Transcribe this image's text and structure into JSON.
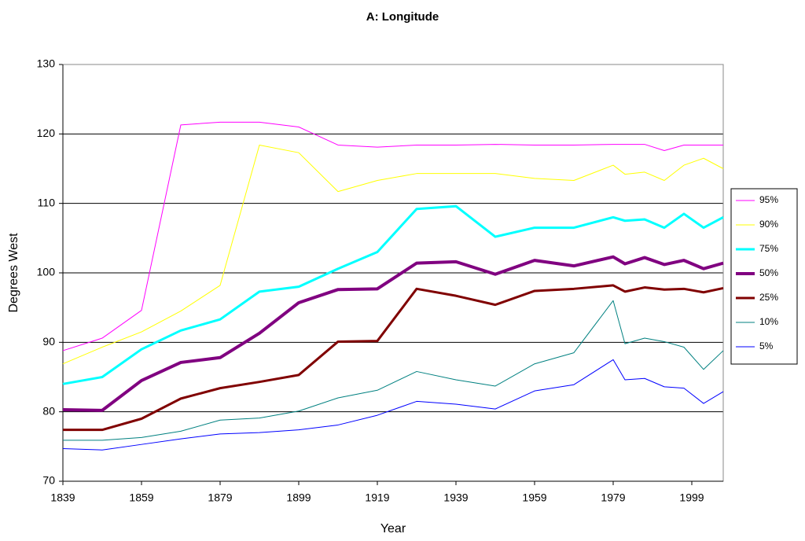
{
  "chart_data": {
    "type": "line",
    "title": "A: Longitude",
    "x_label": "Year",
    "y_label": "Degrees West",
    "x": [
      1839,
      1849,
      1859,
      1869,
      1879,
      1889,
      1899,
      1909,
      1919,
      1929,
      1939,
      1949,
      1959,
      1969,
      1979,
      1982,
      1987,
      1992,
      1997,
      2002,
      2007
    ],
    "xlim": [
      1839,
      2007
    ],
    "xticks": [
      1839,
      1859,
      1879,
      1899,
      1919,
      1939,
      1959,
      1979,
      1999
    ],
    "ylim": [
      70,
      130
    ],
    "yticks": [
      70,
      80,
      90,
      100,
      110,
      120,
      130
    ],
    "grid": true,
    "legend": "right",
    "series": [
      {
        "name": "95%",
        "color": "#ff00ff",
        "line_width": 1,
        "values": [
          88.8,
          90.6,
          94.6,
          121.3,
          121.7,
          121.7,
          121.0,
          118.4,
          118.1,
          118.4,
          118.4,
          118.5,
          118.4,
          118.4,
          118.5,
          118.5,
          118.5,
          117.6,
          118.4,
          118.4,
          118.4
        ]
      },
      {
        "name": "90%",
        "color": "#ffff00",
        "line_width": 1,
        "values": [
          86.9,
          89.3,
          91.5,
          94.5,
          98.2,
          118.4,
          117.3,
          111.7,
          113.3,
          114.3,
          114.3,
          114.3,
          113.6,
          113.3,
          115.5,
          114.2,
          114.5,
          113.3,
          115.5,
          116.5,
          115.0
        ]
      },
      {
        "name": "75%",
        "color": "#00ffff",
        "line_width": 3,
        "values": [
          84.0,
          85.0,
          89.0,
          91.7,
          93.3,
          97.3,
          98.0,
          100.6,
          103.0,
          109.2,
          109.6,
          105.2,
          106.5,
          106.5,
          108.0,
          107.5,
          107.7,
          106.5,
          108.5,
          106.5,
          108.0
        ]
      },
      {
        "name": "50%",
        "color": "#800080",
        "line_width": 4,
        "values": [
          80.3,
          80.2,
          84.5,
          87.1,
          87.8,
          91.3,
          95.7,
          97.6,
          97.7,
          101.4,
          101.6,
          99.8,
          101.8,
          101.0,
          102.3,
          101.3,
          102.2,
          101.2,
          101.8,
          100.6,
          101.4
        ]
      },
      {
        "name": "25%",
        "color": "#800000",
        "line_width": 3,
        "values": [
          77.4,
          77.4,
          79.0,
          81.9,
          83.4,
          84.3,
          85.3,
          90.1,
          90.2,
          97.7,
          96.7,
          95.4,
          97.4,
          97.7,
          98.2,
          97.3,
          97.9,
          97.6,
          97.7,
          97.2,
          97.8
        ]
      },
      {
        "name": "10%",
        "color": "#008080",
        "line_width": 1,
        "values": [
          75.9,
          75.9,
          76.3,
          77.2,
          78.8,
          79.1,
          80.1,
          82.0,
          83.1,
          85.8,
          84.6,
          83.7,
          86.9,
          88.5,
          96.0,
          89.8,
          90.6,
          90.1,
          89.3,
          86.1,
          88.8
        ]
      },
      {
        "name": "5%",
        "color": "#0000ff",
        "line_width": 1,
        "values": [
          74.7,
          74.5,
          75.3,
          76.1,
          76.8,
          77.0,
          77.4,
          78.1,
          79.5,
          81.5,
          81.1,
          80.4,
          83.0,
          83.9,
          87.5,
          84.6,
          84.8,
          83.6,
          83.4,
          81.2,
          82.9
        ]
      }
    ]
  }
}
